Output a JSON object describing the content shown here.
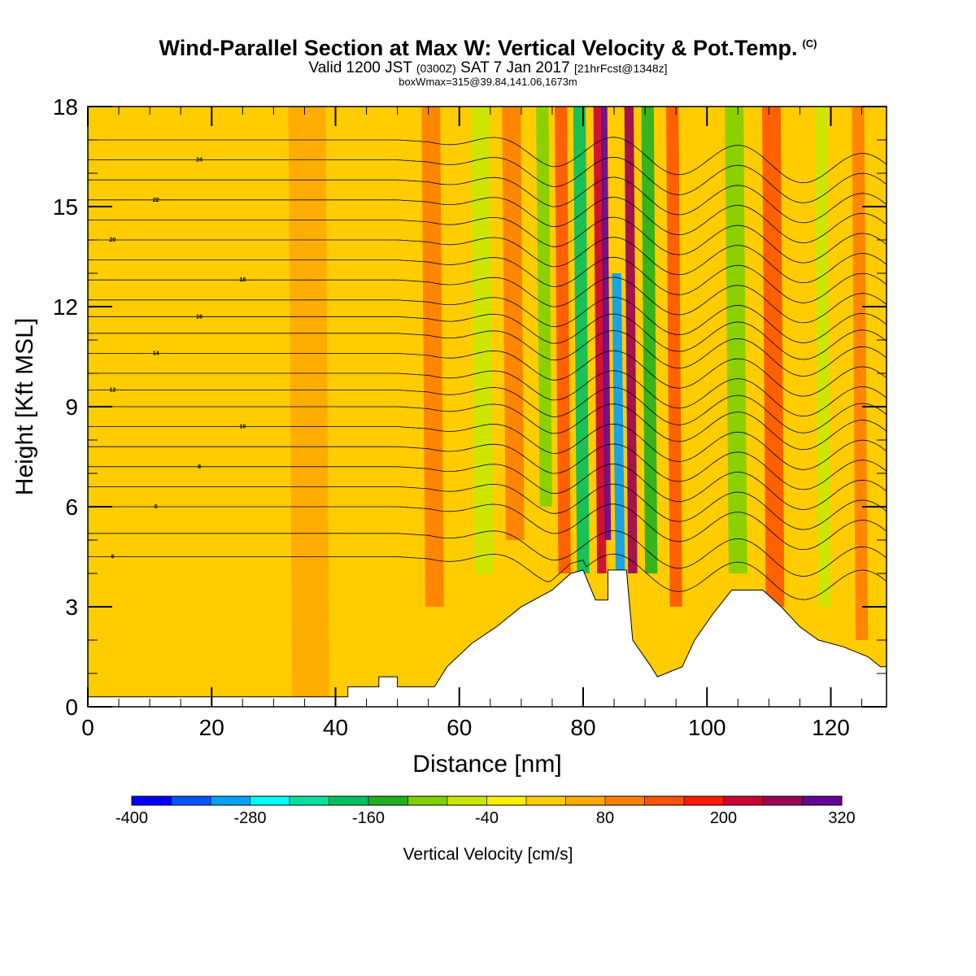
{
  "header": {
    "title": "Wind-Parallel Section at Max W: Vertical Velocity & Pot.Temp.",
    "copyright": "(C)",
    "valid_prefix": "Valid 1200 JST",
    "valid_zulu": "(0300Z)",
    "valid_suffix": "SAT 7 Jan 2017",
    "forecast": "[21hrFcst@1348z]",
    "box_info": "boxWmax=315@39.84,141.06,1673m"
  },
  "chart_data": {
    "type": "heatmap",
    "title": "Wind-Parallel Section at Max W: Vertical Velocity & Pot.Temp.",
    "xlabel": "Distance [nm]",
    "ylabel": "Height [Kft MSL]",
    "xlim": [
      0,
      129
    ],
    "ylim": [
      0,
      18
    ],
    "x_ticks": [
      "0",
      "20",
      "40",
      "60",
      "80",
      "100",
      "120"
    ],
    "y_ticks": [
      "0",
      "3",
      "6",
      "9",
      "12",
      "15",
      "18"
    ],
    "colorbar": {
      "title": "Vertical Velocity [cm/s]",
      "min": -400,
      "max": 320,
      "step": 40,
      "tick_labels": [
        "-400",
        "-280",
        "-160",
        "-40",
        "80",
        "200",
        "320"
      ],
      "colors": [
        "#0000ff",
        "#0055ff",
        "#00a0ff",
        "#00ffff",
        "#00e0a0",
        "#00c060",
        "#20b020",
        "#80d000",
        "#c8e800",
        "#ffee00",
        "#ffcc00",
        "#ffaa00",
        "#ff8000",
        "#ff5500",
        "#ff1a00",
        "#cc0033",
        "#990055",
        "#660099"
      ]
    },
    "background_level_cm_s": 0,
    "vertical_velocity_bands": [
      {
        "x": 36,
        "w": 6,
        "ymin": 0,
        "ymax": 18,
        "w_cm_s": 40
      },
      {
        "x": 56,
        "w": 3,
        "ymin": 3,
        "ymax": 18,
        "w_cm_s": 80
      },
      {
        "x": 64,
        "w": 3,
        "ymin": 4,
        "ymax": 18,
        "w_cm_s": -80
      },
      {
        "x": 69,
        "w": 3,
        "ymin": 5,
        "ymax": 18,
        "w_cm_s": 80
      },
      {
        "x": 74,
        "w": 2,
        "ymin": 6,
        "ymax": 18,
        "w_cm_s": -120
      },
      {
        "x": 77,
        "w": 2,
        "ymin": 4,
        "ymax": 18,
        "w_cm_s": 120
      },
      {
        "x": 80,
        "w": 2,
        "ymin": 4,
        "ymax": 18,
        "w_cm_s": -200
      },
      {
        "x": 83,
        "w": 1.5,
        "ymin": 4,
        "ymax": 18,
        "w_cm_s": 200
      },
      {
        "x": 84,
        "w": 1,
        "ymin": 5,
        "ymax": 18,
        "w_cm_s": 280
      },
      {
        "x": 86,
        "w": 1.5,
        "ymin": 4,
        "ymax": 13,
        "w_cm_s": -320
      },
      {
        "x": 88,
        "w": 1.5,
        "ymin": 4,
        "ymax": 18,
        "w_cm_s": 240
      },
      {
        "x": 91,
        "w": 2,
        "ymin": 4,
        "ymax": 18,
        "w_cm_s": -160
      },
      {
        "x": 95,
        "w": 2,
        "ymin": 3,
        "ymax": 18,
        "w_cm_s": 120
      },
      {
        "x": 105,
        "w": 3,
        "ymin": 4,
        "ymax": 18,
        "w_cm_s": -120
      },
      {
        "x": 111,
        "w": 3,
        "ymin": 3,
        "ymax": 18,
        "w_cm_s": 120
      },
      {
        "x": 119,
        "w": 2,
        "ymin": 3,
        "ymax": 18,
        "w_cm_s": -80
      },
      {
        "x": 125,
        "w": 2,
        "ymin": 2,
        "ymax": 18,
        "w_cm_s": 80
      }
    ],
    "terrain_height_kft": [
      [
        0,
        0.3
      ],
      [
        42,
        0.3
      ],
      [
        42,
        0.6
      ],
      [
        47,
        0.6
      ],
      [
        47,
        0.9
      ],
      [
        50,
        0.9
      ],
      [
        50,
        0.6
      ],
      [
        56,
        0.6
      ],
      [
        58,
        1.2
      ],
      [
        62,
        1.9
      ],
      [
        66,
        2.4
      ],
      [
        70,
        3.0
      ],
      [
        75,
        3.5
      ],
      [
        78,
        4.0
      ],
      [
        80,
        4.1
      ],
      [
        82,
        3.2
      ],
      [
        84,
        3.2
      ],
      [
        84,
        4.1
      ],
      [
        87,
        4.1
      ],
      [
        88,
        2.0
      ],
      [
        91,
        1.2
      ],
      [
        92,
        0.9
      ],
      [
        96,
        1.2
      ],
      [
        98,
        2.0
      ],
      [
        101,
        2.8
      ],
      [
        104,
        3.5
      ],
      [
        109,
        3.5
      ],
      [
        112,
        3.0
      ],
      [
        115,
        2.4
      ],
      [
        118,
        2.0
      ],
      [
        122,
        1.8
      ],
      [
        126,
        1.5
      ],
      [
        128,
        1.2
      ],
      [
        129,
        1.2
      ]
    ],
    "theta_contour_labels": [
      "6",
      "6",
      "8",
      "10",
      "12",
      "14",
      "16",
      "18",
      "20",
      "22",
      "24"
    ],
    "theta_contours_kft_at_x0": [
      4.5,
      5.2,
      6.0,
      6.6,
      7.2,
      7.8,
      8.4,
      9.0,
      9.5,
      10.0,
      10.6,
      11.2,
      11.7,
      12.2,
      12.8,
      13.4,
      14.0,
      14.6,
      15.2,
      15.8,
      16.4,
      17.0
    ]
  }
}
